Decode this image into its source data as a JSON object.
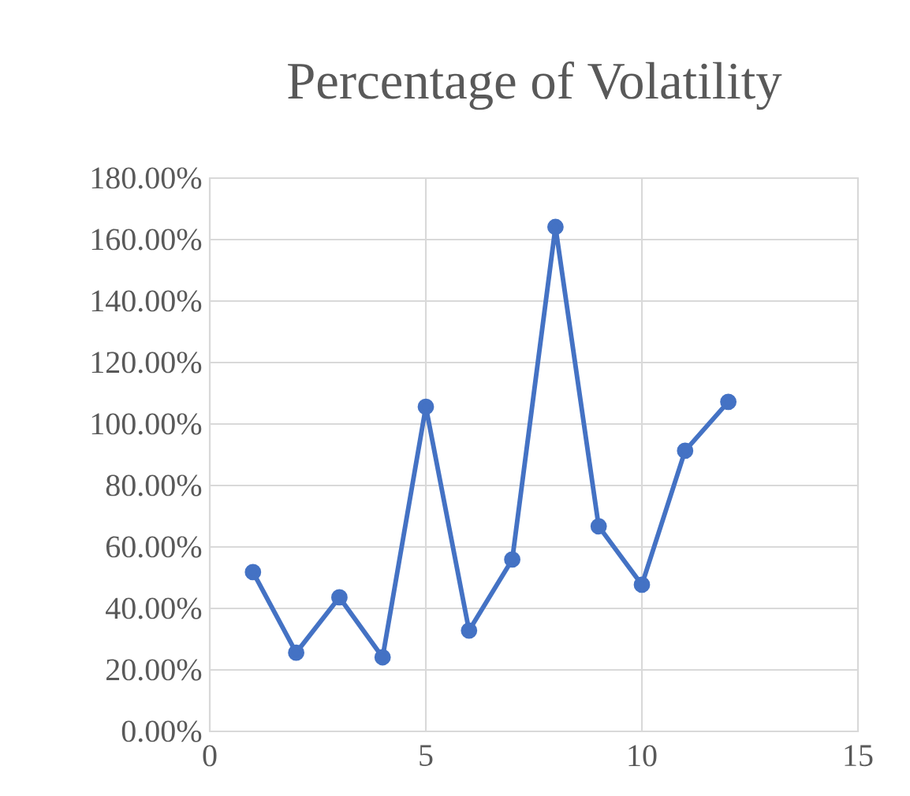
{
  "chart_data": {
    "type": "line",
    "title": "Percentage of Volatility",
    "x": [
      1,
      2,
      3,
      4,
      5,
      6,
      7,
      8,
      9,
      10,
      11,
      12
    ],
    "values": [
      51.8,
      25.6,
      43.6,
      24.1,
      105.6,
      32.8,
      55.9,
      164.1,
      66.7,
      47.7,
      91.3,
      107.2
    ],
    "color": "#4472c4",
    "marker": "circle",
    "line_style": "solid",
    "grid": true,
    "xlim": [
      0,
      15
    ],
    "xticks": [
      0,
      5,
      10,
      15
    ],
    "ylim": [
      0,
      180
    ],
    "yticks": [
      {
        "value": 0,
        "label": "0.00%"
      },
      {
        "value": 20,
        "label": "20.00%"
      },
      {
        "value": 40,
        "label": "40.00%"
      },
      {
        "value": 60,
        "label": "60.00%"
      },
      {
        "value": 80,
        "label": "80.00%"
      },
      {
        "value": 100,
        "label": "100.00%"
      },
      {
        "value": 120,
        "label": "120.00%"
      },
      {
        "value": 140,
        "label": "140.00%"
      },
      {
        "value": 160,
        "label": "160.00%"
      },
      {
        "value": 180,
        "label": "180.00%"
      }
    ]
  }
}
